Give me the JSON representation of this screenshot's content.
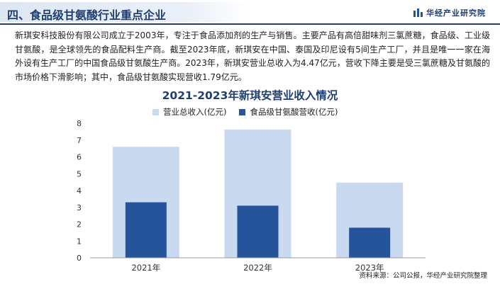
{
  "header": {
    "title": "四、食品级甘氨酸行业重点企业",
    "brand_name": "华经产业研究院"
  },
  "description": "新琪安科技股份有限公司成立于2003年，专注于食品添加剂的生产与销售。主要产品有高倍甜味剂三氯蔗糖，食品级、工业级甘氨酸，是全球领先的食品配料生产商。截至2023年底，新琪安在中国、泰国及印尼设有5间生产工厂，并且是唯一一家在海外设有生产工厂的中国食品级甘氨酸生产商。2023年，新琪安营业总收入为4.47亿元，营收下降主要是受三氯蔗糖及甘氨酸的市场价格下滑影响；其中，食品级甘氨酸实现营收1.79亿元。",
  "source": "资料来源：公司公报，华经产业研究院整理",
  "colors": {
    "header_text": "#1f3f70",
    "total_revenue": "#c9d9f0",
    "glycine_revenue": "#26549a"
  },
  "chart_data": {
    "type": "bar",
    "title": "2021-2023年新琪安营业收入情况",
    "categories": [
      "2021年",
      "2022年",
      "2023年"
    ],
    "series": [
      {
        "name": "营业总收入(亿元)",
        "values": [
          6.6,
          7.62,
          4.47
        ]
      },
      {
        "name": "食品级甘氨酸营收(亿元)",
        "values": [
          3.3,
          3.1,
          1.79
        ]
      }
    ],
    "ylim": [
      0,
      8
    ],
    "yticks": [
      "0",
      "1",
      "2",
      "3",
      "4",
      "5",
      "6",
      "7",
      "8"
    ],
    "legend_position": "top",
    "grid": false
  }
}
